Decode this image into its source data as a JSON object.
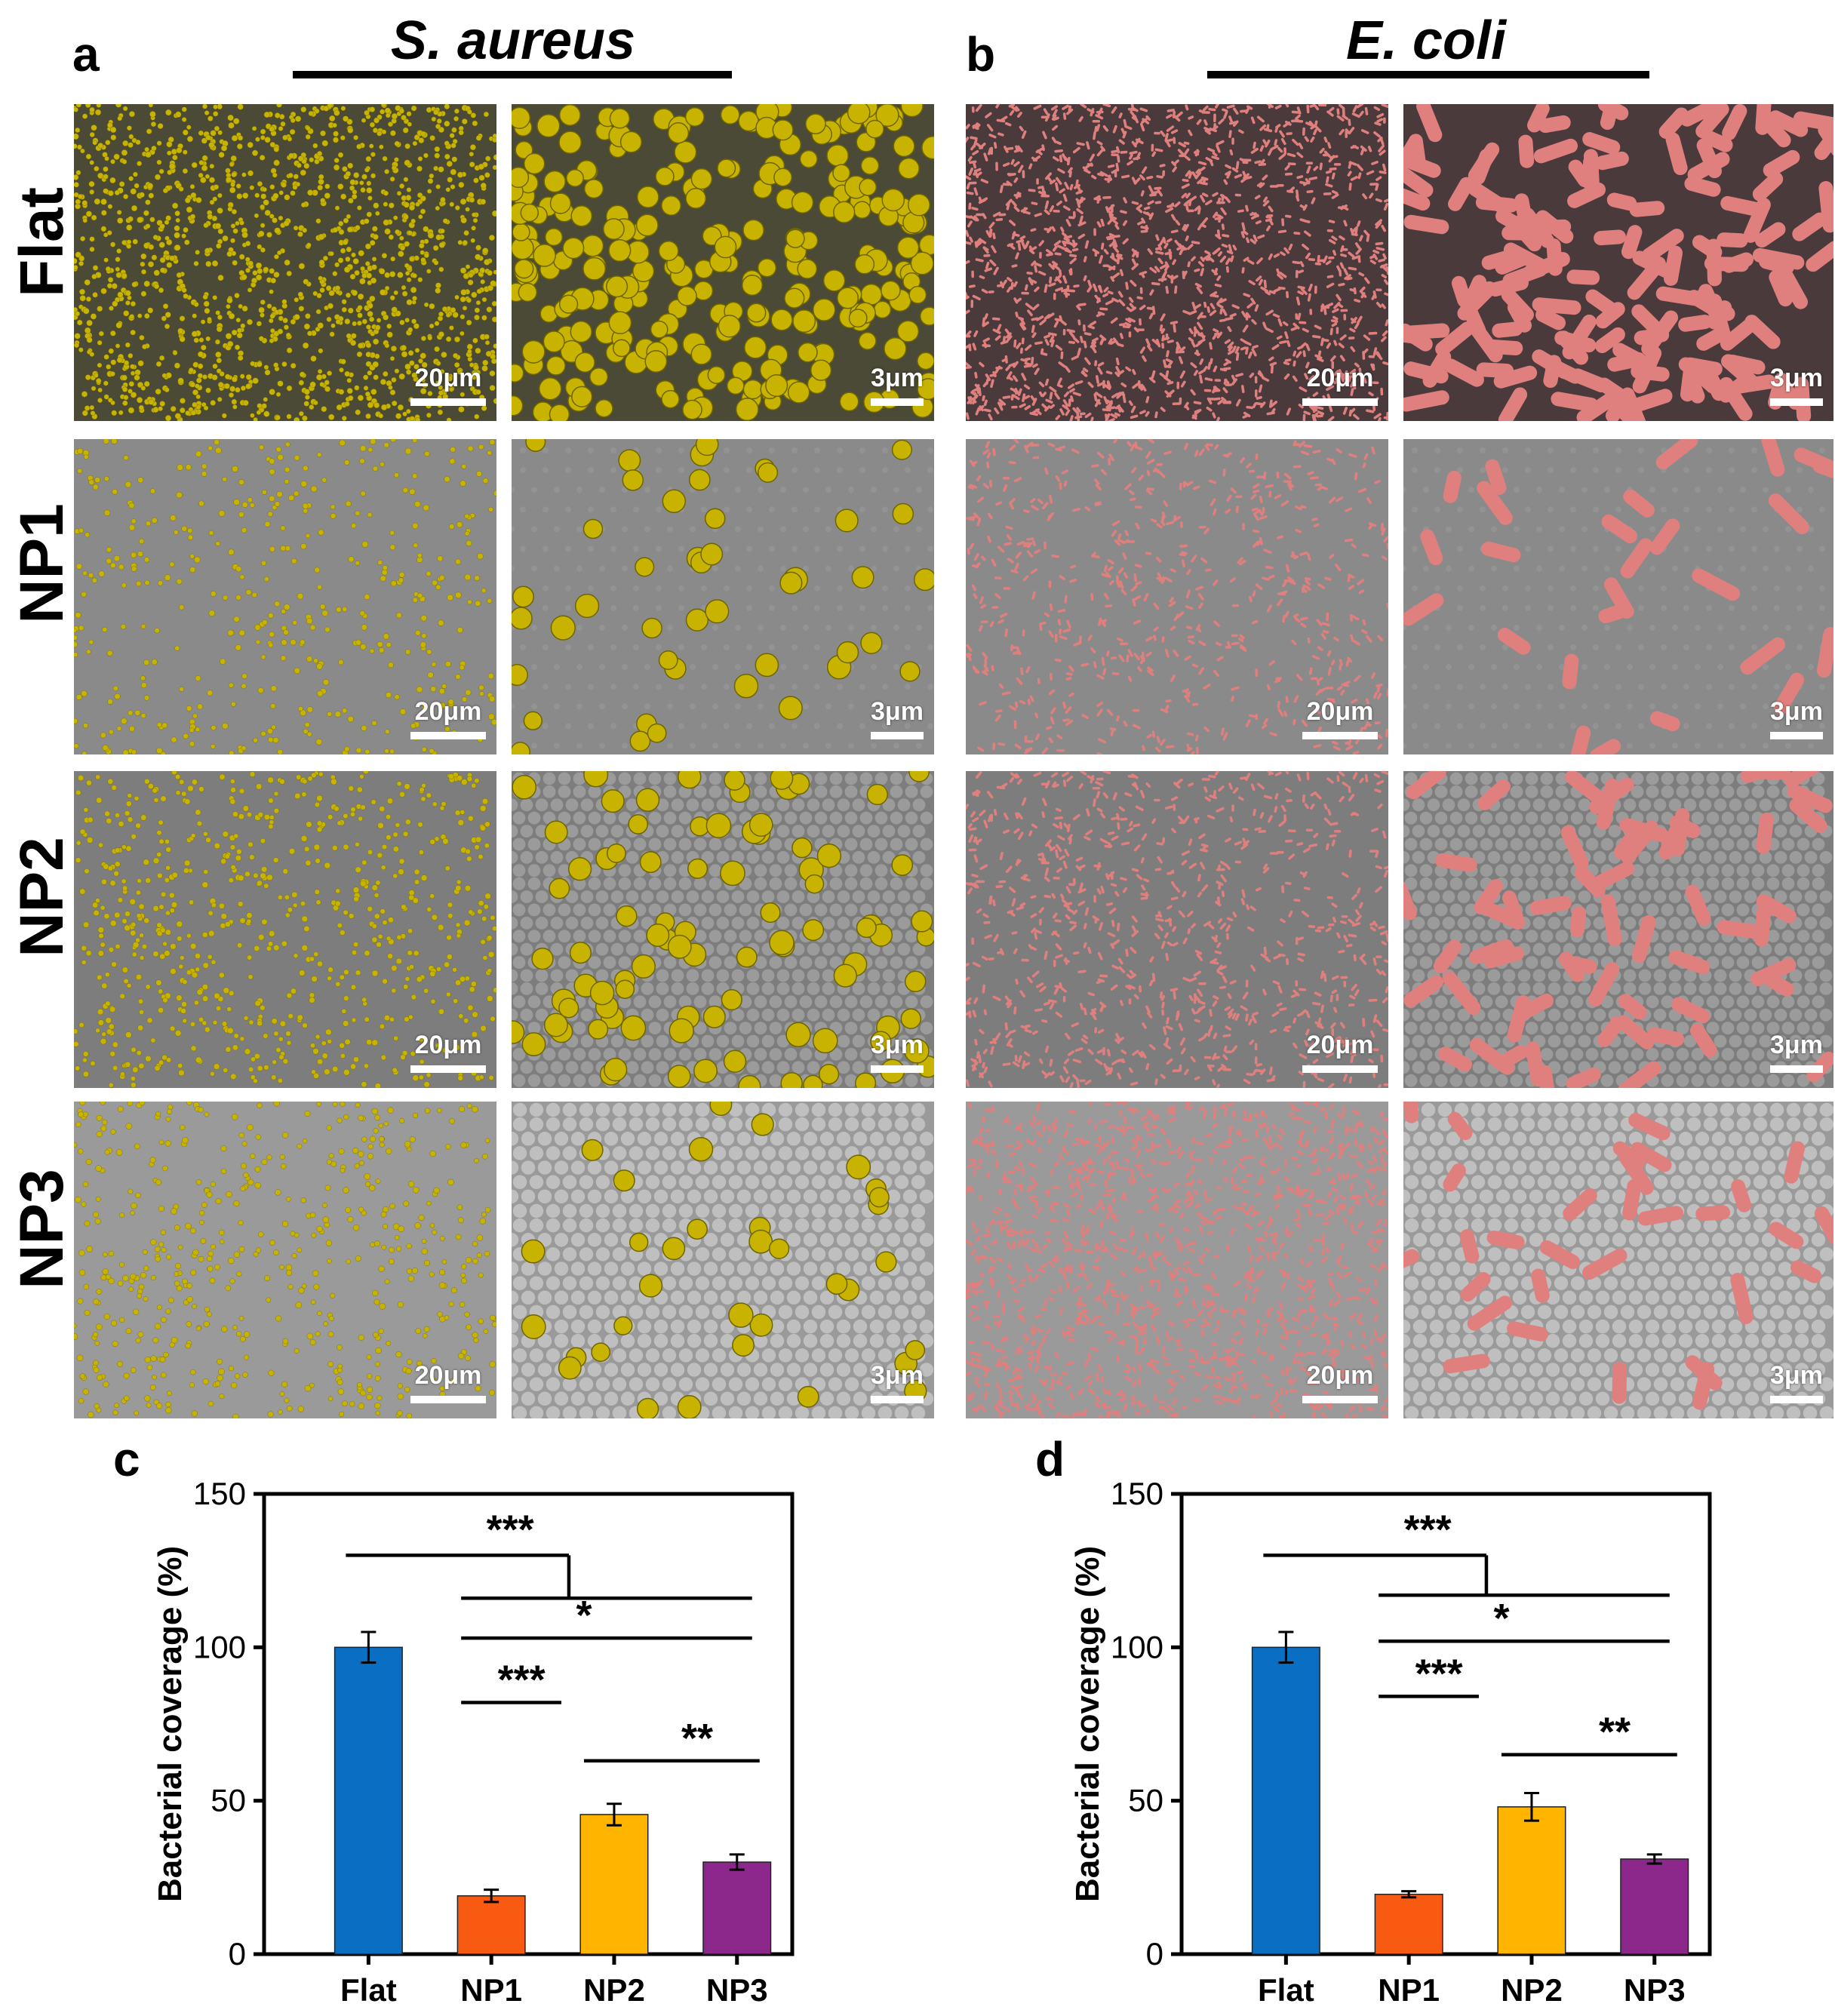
{
  "panels": {
    "a": {
      "letter": "a",
      "species": "S. aureus"
    },
    "b": {
      "letter": "b",
      "species": "E. coli"
    },
    "c": {
      "letter": "c"
    },
    "d": {
      "letter": "d"
    }
  },
  "rows": [
    "Flat",
    "NP1",
    "NP2",
    "NP3"
  ],
  "scale_labels": {
    "low": "20μm",
    "high": "3μm"
  },
  "colors": {
    "saureus": "#c8b400",
    "ecoli": "#e0807e",
    "flat_bar": "#0a6fc2",
    "np1_bar": "#f85a12",
    "np2_bar": "#ffb400",
    "np3_bar": "#8c278c",
    "substrate": "#7a7a7a"
  },
  "chart_data": [
    {
      "panel": "c",
      "type": "bar",
      "organism": "S. aureus",
      "categories": [
        "Flat",
        "NP1",
        "NP2",
        "NP3"
      ],
      "values": [
        100,
        19,
        45.5,
        30
      ],
      "errors": [
        5,
        2,
        3.5,
        2.5
      ],
      "ylabel": "Bacterial coverage (%)",
      "xlabel": "",
      "ylim": [
        0,
        150
      ],
      "yticks": [
        0,
        50,
        100,
        150
      ],
      "significance": [
        {
          "from": "Flat",
          "to": "NP1/NP2/NP3",
          "label": "***"
        },
        {
          "from": "NP1",
          "to": "NP3",
          "label": "*"
        },
        {
          "from": "NP1",
          "to": "NP2",
          "label": "***"
        },
        {
          "from": "NP2",
          "to": "NP3",
          "label": "**"
        }
      ]
    },
    {
      "panel": "d",
      "type": "bar",
      "organism": "E. coli",
      "categories": [
        "Flat",
        "NP1",
        "NP2",
        "NP3"
      ],
      "values": [
        100,
        19.5,
        48,
        31
      ],
      "errors": [
        5,
        1,
        4.5,
        1.5
      ],
      "ylabel": "Bacterial coverage (%)",
      "xlabel": "",
      "ylim": [
        0,
        150
      ],
      "yticks": [
        0,
        50,
        100,
        150
      ],
      "significance": [
        {
          "from": "Flat",
          "to": "NP1/NP2/NP3",
          "label": "***"
        },
        {
          "from": "NP1",
          "to": "NP3",
          "label": "*"
        },
        {
          "from": "NP1",
          "to": "NP2",
          "label": "***"
        },
        {
          "from": "NP2",
          "to": "NP3",
          "label": "**"
        }
      ]
    }
  ]
}
